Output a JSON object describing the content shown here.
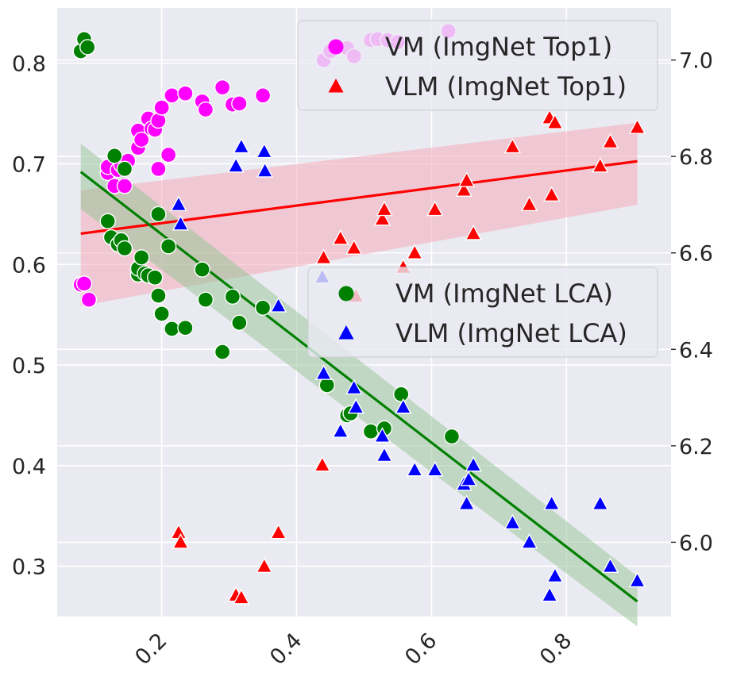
{
  "chart_data": {
    "type": "scatter",
    "title": "",
    "xlabel": "",
    "ylabel_left": "",
    "ylabel_right": "",
    "xlim": [
      0.045,
      0.955
    ],
    "ylim_left": [
      0.25,
      0.855
    ],
    "ylim_right": [
      5.846,
      7.108
    ],
    "grid": true,
    "x_ticks": [
      {
        "value": 0.2,
        "label": "0.2"
      },
      {
        "value": 0.4,
        "label": "0.4"
      },
      {
        "value": 0.6,
        "label": "0.6"
      },
      {
        "value": 0.8,
        "label": "0.8"
      }
    ],
    "y_left_ticks": [
      {
        "value": 0.3,
        "label": "0.3"
      },
      {
        "value": 0.4,
        "label": "0.4"
      },
      {
        "value": 0.5,
        "label": "0.5"
      },
      {
        "value": 0.6,
        "label": "0.6"
      },
      {
        "value": 0.7,
        "label": "0.7"
      },
      {
        "value": 0.8,
        "label": "0.8"
      }
    ],
    "y_right_ticks": [
      {
        "value": 6.0,
        "label": "6.0"
      },
      {
        "value": 6.2,
        "label": "6.2"
      },
      {
        "value": 6.4,
        "label": "6.4"
      },
      {
        "value": 6.6,
        "label": "6.6"
      },
      {
        "value": 6.8,
        "label": "6.8"
      },
      {
        "value": 7.0,
        "label": "7.0"
      }
    ],
    "legends": [
      {
        "placement": "top-right",
        "entries": [
          {
            "label": "VM (ImgNet Top1)",
            "color": "#ff00ff",
            "marker": "circle"
          },
          {
            "label": "VLM (ImgNet Top1)",
            "color": "#ff0000",
            "marker": "triangle"
          }
        ]
      },
      {
        "placement": "center-right",
        "entries": [
          {
            "label": "VM (ImgNet LCA)",
            "color": "#008000",
            "marker": "circle"
          },
          {
            "label": "VLM (ImgNet LCA)",
            "color": "#0000ff",
            "marker": "triangle"
          }
        ]
      }
    ],
    "series": [
      {
        "label": "VM (ImgNet Top1)",
        "axis": "left",
        "marker": "circle",
        "color": "#ff00ff",
        "points": [
          [
            0.08,
            0.58
          ],
          [
            0.085,
            0.581
          ],
          [
            0.092,
            0.565
          ],
          [
            0.12,
            0.691
          ],
          [
            0.12,
            0.697
          ],
          [
            0.13,
            0.678
          ],
          [
            0.135,
            0.694
          ],
          [
            0.14,
            0.699
          ],
          [
            0.145,
            0.678
          ],
          [
            0.15,
            0.703
          ],
          [
            0.165,
            0.716
          ],
          [
            0.165,
            0.733
          ],
          [
            0.17,
            0.724
          ],
          [
            0.18,
            0.745
          ],
          [
            0.185,
            0.735
          ],
          [
            0.19,
            0.734
          ],
          [
            0.195,
            0.743
          ],
          [
            0.195,
            0.695
          ],
          [
            0.2,
            0.756
          ],
          [
            0.21,
            0.709
          ],
          [
            0.215,
            0.768
          ],
          [
            0.235,
            0.77
          ],
          [
            0.26,
            0.762
          ],
          [
            0.265,
            0.754
          ],
          [
            0.29,
            0.776
          ],
          [
            0.305,
            0.759
          ],
          [
            0.315,
            0.76
          ],
          [
            0.35,
            0.768
          ],
          [
            0.44,
            0.803
          ],
          [
            0.45,
            0.812
          ],
          [
            0.475,
            0.815
          ],
          [
            0.485,
            0.807
          ],
          [
            0.51,
            0.823
          ],
          [
            0.52,
            0.824
          ],
          [
            0.535,
            0.823
          ],
          [
            0.55,
            0.821
          ],
          [
            0.625,
            0.832
          ]
        ]
      },
      {
        "label": "VLM (ImgNet Top1)",
        "axis": "right",
        "marker": "triangle",
        "color": "#ff0000",
        "points": [
          [
            0.225,
            6.02
          ],
          [
            0.228,
            6.0
          ],
          [
            0.31,
            5.89
          ],
          [
            0.318,
            5.885
          ],
          [
            0.352,
            5.95
          ],
          [
            0.373,
            6.02
          ],
          [
            0.438,
            6.16
          ],
          [
            0.44,
            6.59
          ],
          [
            0.465,
            6.63
          ],
          [
            0.485,
            6.61
          ],
          [
            0.488,
            6.51
          ],
          [
            0.527,
            6.67
          ],
          [
            0.53,
            6.69
          ],
          [
            0.558,
            6.57
          ],
          [
            0.575,
            6.6
          ],
          [
            0.605,
            6.69
          ],
          [
            0.648,
            6.73
          ],
          [
            0.652,
            6.75
          ],
          [
            0.662,
            6.64
          ],
          [
            0.72,
            6.82
          ],
          [
            0.745,
            6.7
          ],
          [
            0.775,
            6.88
          ],
          [
            0.778,
            6.72
          ],
          [
            0.783,
            6.87
          ],
          [
            0.85,
            6.78
          ],
          [
            0.865,
            6.83
          ],
          [
            0.905,
            6.86
          ]
        ]
      },
      {
        "label": "VM (ImgNet LCA)",
        "axis": "left",
        "marker": "circle",
        "color": "#008000",
        "points": [
          [
            0.08,
            0.812
          ],
          [
            0.085,
            0.824
          ],
          [
            0.09,
            0.816
          ],
          [
            0.12,
            0.643
          ],
          [
            0.125,
            0.627
          ],
          [
            0.13,
            0.708
          ],
          [
            0.135,
            0.62
          ],
          [
            0.14,
            0.624
          ],
          [
            0.145,
            0.616
          ],
          [
            0.145,
            0.695
          ],
          [
            0.165,
            0.59
          ],
          [
            0.165,
            0.596
          ],
          [
            0.17,
            0.607
          ],
          [
            0.175,
            0.591
          ],
          [
            0.18,
            0.589
          ],
          [
            0.19,
            0.587
          ],
          [
            0.195,
            0.569
          ],
          [
            0.195,
            0.65
          ],
          [
            0.2,
            0.551
          ],
          [
            0.21,
            0.618
          ],
          [
            0.215,
            0.536
          ],
          [
            0.235,
            0.537
          ],
          [
            0.26,
            0.595
          ],
          [
            0.265,
            0.565
          ],
          [
            0.29,
            0.513
          ],
          [
            0.305,
            0.568
          ],
          [
            0.315,
            0.542
          ],
          [
            0.35,
            0.557
          ],
          [
            0.445,
            0.48
          ],
          [
            0.475,
            0.45
          ],
          [
            0.48,
            0.452
          ],
          [
            0.51,
            0.434
          ],
          [
            0.53,
            0.437
          ],
          [
            0.555,
            0.471
          ],
          [
            0.63,
            0.429
          ]
        ]
      },
      {
        "label": "VLM (ImgNet LCA)",
        "axis": "right",
        "marker": "triangle",
        "color": "#0000ff",
        "points": [
          [
            0.225,
            6.7
          ],
          [
            0.228,
            6.66
          ],
          [
            0.31,
            6.78
          ],
          [
            0.318,
            6.82
          ],
          [
            0.352,
            6.81
          ],
          [
            0.353,
            6.77
          ],
          [
            0.373,
            6.49
          ],
          [
            0.438,
            6.55
          ],
          [
            0.44,
            6.35
          ],
          [
            0.465,
            6.23
          ],
          [
            0.485,
            6.32
          ],
          [
            0.488,
            6.28
          ],
          [
            0.527,
            6.22
          ],
          [
            0.53,
            6.18
          ],
          [
            0.558,
            6.28
          ],
          [
            0.575,
            6.15
          ],
          [
            0.605,
            6.15
          ],
          [
            0.648,
            6.12
          ],
          [
            0.652,
            6.08
          ],
          [
            0.655,
            6.13
          ],
          [
            0.662,
            6.16
          ],
          [
            0.72,
            6.04
          ],
          [
            0.745,
            6.0
          ],
          [
            0.775,
            5.89
          ],
          [
            0.778,
            6.08
          ],
          [
            0.783,
            5.93
          ],
          [
            0.85,
            6.08
          ],
          [
            0.865,
            5.95
          ],
          [
            0.905,
            5.92
          ]
        ]
      }
    ],
    "regressions": [
      {
        "series": "VLM (ImgNet Top1)",
        "axis": "right",
        "color": "#ff0000",
        "band_color": "#f4a6b4",
        "x": [
          0.08,
          0.905
        ],
        "fit": [
          6.64,
          6.79
        ],
        "lower": [
          6.49,
          6.7
        ],
        "upper": [
          6.73,
          6.87
        ]
      },
      {
        "series": "VM (ImgNet LCA)",
        "axis": "left",
        "color": "#008000",
        "band_color": "#93c393",
        "x": [
          0.08,
          0.905
        ],
        "fit": [
          0.692,
          0.265
        ],
        "lower": [
          0.655,
          0.24
        ],
        "upper": [
          0.72,
          0.29
        ]
      }
    ]
  }
}
